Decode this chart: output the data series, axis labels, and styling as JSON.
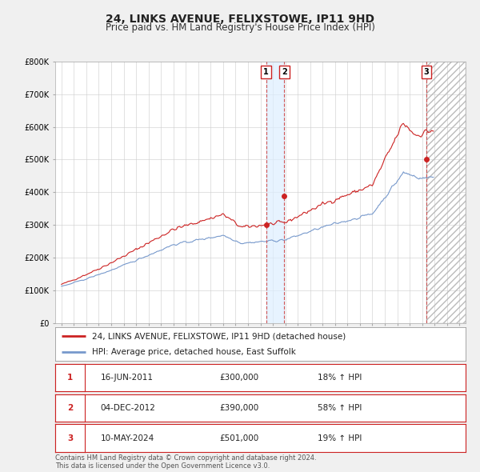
{
  "title": "24, LINKS AVENUE, FELIXSTOWE, IP11 9HD",
  "subtitle": "Price paid vs. HM Land Registry's House Price Index (HPI)",
  "ylim": [
    0,
    800000
  ],
  "xlim": [
    1994.5,
    2027.5
  ],
  "yticks": [
    0,
    100000,
    200000,
    300000,
    400000,
    500000,
    600000,
    700000,
    800000
  ],
  "ytick_labels": [
    "£0",
    "£100K",
    "£200K",
    "£300K",
    "£400K",
    "£500K",
    "£600K",
    "£700K",
    "£800K"
  ],
  "line1_color": "#cc2222",
  "line2_color": "#7799cc",
  "grid_color": "#cccccc",
  "bg_color": "#f0f0f0",
  "plot_bg_color": "#ffffff",
  "sale_dates": [
    2011.46,
    2012.92,
    2024.36
  ],
  "sale_prices": [
    300000,
    390000,
    501000
  ],
  "sale_labels": [
    "1",
    "2",
    "3"
  ],
  "shade_x1": 2011.46,
  "shade_x2": 2012.92,
  "shade_color": "#ddeeff",
  "hatch_x_start": 2024.36,
  "legend_label1": "24, LINKS AVENUE, FELIXSTOWE, IP11 9HD (detached house)",
  "legend_label2": "HPI: Average price, detached house, East Suffolk",
  "table_rows": [
    [
      "1",
      "16-JUN-2011",
      "£300,000",
      "18% ↑ HPI"
    ],
    [
      "2",
      "04-DEC-2012",
      "£390,000",
      "58% ↑ HPI"
    ],
    [
      "3",
      "10-MAY-2024",
      "£501,000",
      "19% ↑ HPI"
    ]
  ],
  "footnote": "Contains HM Land Registry data © Crown copyright and database right 2024.\nThis data is licensed under the Open Government Licence v3.0.",
  "title_fontsize": 10,
  "subtitle_fontsize": 8.5,
  "tick_fontsize": 7,
  "legend_fontsize": 7.5,
  "table_fontsize": 7.5,
  "footnote_fontsize": 6
}
